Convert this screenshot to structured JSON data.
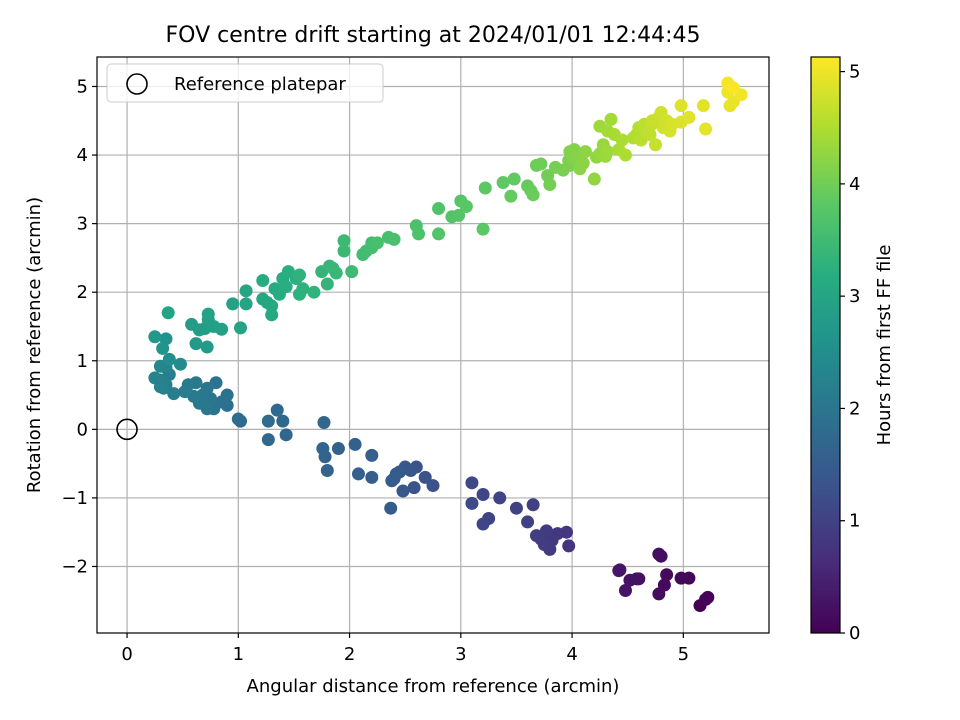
{
  "chart_data": {
    "type": "scatter",
    "title": "FOV centre drift starting at 2024/01/01 12:44:45",
    "xlabel": "Angular distance from reference (arcmin)",
    "ylabel": "Rotation from reference (arcmin)",
    "xlim": [
      -0.27,
      5.77
    ],
    "ylim": [
      -2.97,
      5.43
    ],
    "xticks": [
      0,
      1,
      2,
      3,
      4,
      5
    ],
    "yticks": [
      -2,
      -1,
      0,
      1,
      2,
      3,
      4,
      5
    ],
    "xtick_labels": [
      "0",
      "1",
      "2",
      "3",
      "4",
      "5"
    ],
    "ytick_labels": [
      "−2",
      "−1",
      "0",
      "1",
      "2",
      "3",
      "4",
      "5"
    ],
    "grid": true,
    "legend": {
      "placement": "upper-left",
      "entries": [
        "Reference platepar"
      ]
    },
    "colormap": "viridis",
    "colorbar": {
      "label": "Hours from first FF file",
      "range": [
        0,
        5.13
      ],
      "ticks": [
        0,
        1,
        2,
        3,
        4,
        5
      ],
      "tick_labels": [
        "0",
        "1",
        "2",
        "3",
        "4",
        "5"
      ]
    },
    "reference_point": {
      "name": "Reference platepar",
      "x": 0,
      "y": 0
    },
    "series": [
      {
        "columns": [
          "x",
          "y",
          "hours"
        ],
        "points": [
          [
            5.15,
            -2.57,
            0.02
          ],
          [
            5.22,
            -2.45,
            0.04
          ],
          [
            5.2,
            -2.48,
            0.06
          ],
          [
            5.05,
            -2.17,
            0.08
          ],
          [
            4.98,
            -2.17,
            0.1
          ],
          [
            4.83,
            -2.27,
            0.12
          ],
          [
            4.85,
            -2.12,
            0.14
          ],
          [
            4.78,
            -2.4,
            0.16
          ],
          [
            4.8,
            -1.85,
            0.18
          ],
          [
            4.78,
            -1.82,
            0.2
          ],
          [
            4.58,
            -2.18,
            0.22
          ],
          [
            4.6,
            -2.18,
            0.24
          ],
          [
            4.52,
            -2.2,
            0.26
          ],
          [
            4.48,
            -2.35,
            0.28
          ],
          [
            4.43,
            -2.05,
            0.3
          ],
          [
            4.42,
            -2.06,
            0.32
          ],
          [
            3.97,
            -1.7,
            0.8
          ],
          [
            3.95,
            -1.5,
            0.82
          ],
          [
            3.87,
            -1.52,
            0.84
          ],
          [
            3.82,
            -1.62,
            0.86
          ],
          [
            3.8,
            -1.75,
            0.88
          ],
          [
            3.77,
            -1.48,
            0.9
          ],
          [
            3.75,
            -1.68,
            0.92
          ],
          [
            3.72,
            -1.6,
            0.94
          ],
          [
            3.68,
            -1.55,
            0.96
          ],
          [
            3.65,
            -1.1,
            0.98
          ],
          [
            3.6,
            -1.35,
            1.0
          ],
          [
            3.5,
            -1.15,
            1.02
          ],
          [
            3.35,
            -1.0,
            1.04
          ],
          [
            3.25,
            -1.3,
            1.06
          ],
          [
            3.2,
            -1.38,
            1.08
          ],
          [
            3.2,
            -0.95,
            1.1
          ],
          [
            3.1,
            -0.78,
            1.12
          ],
          [
            3.1,
            -1.08,
            1.14
          ],
          [
            2.75,
            -0.82,
            1.3
          ],
          [
            2.68,
            -0.7,
            1.32
          ],
          [
            2.6,
            -0.55,
            1.34
          ],
          [
            2.58,
            -0.85,
            1.36
          ],
          [
            2.55,
            -0.6,
            1.38
          ],
          [
            2.5,
            -0.55,
            1.4
          ],
          [
            2.48,
            -0.9,
            1.42
          ],
          [
            2.45,
            -0.62,
            1.44
          ],
          [
            2.42,
            -0.65,
            1.46
          ],
          [
            2.4,
            -0.72,
            1.48
          ],
          [
            2.38,
            -0.75,
            1.5
          ],
          [
            2.37,
            -1.15,
            1.52
          ],
          [
            2.2,
            -0.7,
            1.54
          ],
          [
            2.2,
            -0.38,
            1.56
          ],
          [
            2.08,
            -0.65,
            1.58
          ],
          [
            2.05,
            -0.22,
            1.6
          ],
          [
            1.9,
            -0.28,
            1.62
          ],
          [
            1.78,
            -0.4,
            1.64
          ],
          [
            1.8,
            -0.6,
            1.66
          ],
          [
            1.76,
            -0.28,
            1.68
          ],
          [
            1.77,
            0.1,
            1.7
          ],
          [
            1.43,
            -0.08,
            1.72
          ],
          [
            1.4,
            0.12,
            1.74
          ],
          [
            1.35,
            0.28,
            1.76
          ],
          [
            1.27,
            -0.15,
            1.78
          ],
          [
            1.27,
            0.12,
            1.8
          ],
          [
            1.02,
            0.12,
            1.82
          ],
          [
            1.0,
            0.15,
            1.84
          ],
          [
            0.9,
            0.35,
            1.9
          ],
          [
            0.9,
            0.5,
            1.92
          ],
          [
            0.85,
            0.4,
            1.94
          ],
          [
            0.8,
            0.68,
            1.96
          ],
          [
            0.78,
            0.3,
            1.98
          ],
          [
            0.75,
            0.45,
            2.0
          ],
          [
            0.72,
            0.6,
            2.02
          ],
          [
            0.72,
            0.3,
            2.04
          ],
          [
            0.68,
            0.5,
            2.06
          ],
          [
            0.65,
            0.38,
            2.08
          ],
          [
            0.62,
            0.68,
            2.1
          ],
          [
            0.6,
            0.48,
            2.12
          ],
          [
            0.55,
            0.65,
            2.14
          ],
          [
            0.52,
            0.55,
            2.16
          ],
          [
            0.42,
            0.52,
            2.18
          ],
          [
            0.38,
            0.8,
            2.2
          ],
          [
            0.35,
            0.65,
            2.22
          ],
          [
            0.33,
            0.6,
            2.24
          ],
          [
            0.3,
            0.72,
            2.26
          ],
          [
            0.3,
            0.62,
            2.28
          ],
          [
            0.25,
            0.75,
            2.3
          ],
          [
            0.35,
            0.9,
            2.34
          ],
          [
            0.3,
            0.92,
            2.38
          ],
          [
            0.48,
            0.95,
            2.48
          ],
          [
            0.38,
            1.02,
            2.5
          ],
          [
            0.35,
            1.32,
            2.6
          ],
          [
            0.32,
            1.18,
            2.65
          ],
          [
            0.25,
            1.35,
            2.72
          ],
          [
            0.62,
            1.25,
            2.78
          ],
          [
            0.72,
            1.2,
            2.8
          ],
          [
            0.65,
            1.45,
            2.82
          ],
          [
            0.58,
            1.53,
            2.84
          ],
          [
            0.7,
            1.47,
            2.86
          ],
          [
            0.73,
            1.6,
            2.88
          ],
          [
            0.78,
            1.5,
            2.9
          ],
          [
            0.85,
            1.46,
            2.92
          ],
          [
            0.73,
            1.68,
            2.94
          ],
          [
            0.95,
            1.83,
            2.96
          ],
          [
            1.02,
            1.48,
            2.98
          ],
          [
            0.37,
            1.7,
            3.0
          ],
          [
            1.07,
            1.83,
            3.02
          ],
          [
            1.07,
            2.02,
            3.04
          ],
          [
            1.22,
            1.9,
            3.06
          ],
          [
            1.26,
            1.85,
            3.08
          ],
          [
            1.3,
            1.8,
            3.1
          ],
          [
            1.3,
            1.67,
            3.12
          ],
          [
            1.33,
            2.05,
            3.14
          ],
          [
            1.37,
            1.97,
            3.16
          ],
          [
            1.22,
            2.17,
            3.18
          ],
          [
            1.4,
            2.2,
            3.2
          ],
          [
            1.43,
            2.08,
            3.22
          ],
          [
            1.45,
            2.3,
            3.24
          ],
          [
            1.52,
            2.2,
            3.26
          ],
          [
            1.55,
            1.97,
            3.28
          ],
          [
            1.58,
            2.05,
            3.3
          ],
          [
            1.55,
            2.25,
            3.32
          ],
          [
            1.68,
            2.0,
            3.34
          ],
          [
            1.75,
            2.3,
            3.36
          ],
          [
            1.8,
            2.12,
            3.38
          ],
          [
            1.82,
            2.38,
            3.4
          ],
          [
            1.85,
            2.35,
            3.42
          ],
          [
            1.88,
            2.28,
            3.44
          ],
          [
            1.95,
            2.6,
            3.46
          ],
          [
            1.95,
            2.75,
            3.48
          ],
          [
            2.02,
            2.3,
            3.5
          ],
          [
            2.12,
            2.55,
            3.52
          ],
          [
            2.15,
            2.6,
            3.54
          ],
          [
            2.2,
            2.72,
            3.56
          ],
          [
            2.2,
            2.65,
            3.58
          ],
          [
            2.25,
            2.72,
            3.6
          ],
          [
            2.35,
            2.8,
            3.62
          ],
          [
            2.4,
            2.77,
            3.64
          ],
          [
            2.6,
            2.97,
            3.66
          ],
          [
            2.62,
            2.85,
            3.68
          ],
          [
            2.8,
            3.22,
            3.7
          ],
          [
            2.8,
            2.85,
            3.72
          ],
          [
            2.92,
            3.1,
            3.74
          ],
          [
            2.98,
            3.12,
            3.76
          ],
          [
            3.0,
            3.33,
            3.78
          ],
          [
            3.05,
            3.25,
            3.8
          ],
          [
            3.2,
            2.92,
            3.82
          ],
          [
            3.22,
            3.52,
            3.84
          ],
          [
            3.38,
            3.6,
            3.86
          ],
          [
            3.48,
            3.65,
            3.88
          ],
          [
            3.45,
            3.4,
            3.9
          ],
          [
            3.6,
            3.55,
            3.92
          ],
          [
            3.63,
            3.48,
            3.94
          ],
          [
            3.65,
            3.42,
            3.96
          ],
          [
            3.68,
            3.85,
            3.98
          ],
          [
            3.72,
            3.87,
            4.0
          ],
          [
            3.78,
            3.7,
            4.02
          ],
          [
            3.8,
            3.57,
            4.04
          ],
          [
            3.85,
            3.82,
            4.06
          ],
          [
            3.92,
            3.78,
            4.08
          ],
          [
            3.98,
            3.85,
            4.1
          ],
          [
            3.97,
            3.92,
            4.12
          ],
          [
            4.0,
            3.95,
            4.14
          ],
          [
            4.02,
            4.08,
            4.16
          ],
          [
            3.98,
            4.05,
            4.18
          ],
          [
            4.05,
            3.95,
            4.2
          ],
          [
            4.07,
            3.8,
            4.22
          ],
          [
            4.1,
            3.88,
            4.24
          ],
          [
            4.12,
            4.05,
            4.26
          ],
          [
            4.2,
            3.65,
            4.28
          ],
          [
            4.22,
            3.97,
            4.3
          ],
          [
            4.25,
            4.02,
            4.32
          ],
          [
            4.28,
            4.15,
            4.34
          ],
          [
            4.3,
            3.98,
            4.36
          ],
          [
            4.32,
            4.05,
            4.38
          ],
          [
            4.25,
            4.42,
            4.4
          ],
          [
            4.32,
            4.35,
            4.42
          ],
          [
            4.35,
            4.52,
            4.44
          ],
          [
            4.38,
            4.3,
            4.46
          ],
          [
            4.42,
            4.08,
            4.48
          ],
          [
            4.45,
            4.22,
            4.5
          ],
          [
            4.48,
            4.0,
            4.52
          ],
          [
            4.55,
            4.25,
            4.54
          ],
          [
            4.58,
            4.3,
            4.56
          ],
          [
            4.6,
            4.4,
            4.58
          ],
          [
            4.62,
            4.22,
            4.6
          ],
          [
            4.65,
            4.45,
            4.62
          ],
          [
            4.68,
            4.35,
            4.64
          ],
          [
            4.7,
            4.3,
            4.66
          ],
          [
            4.72,
            4.45,
            4.68
          ],
          [
            4.75,
            4.15,
            4.7
          ],
          [
            4.72,
            4.5,
            4.72
          ],
          [
            4.78,
            4.55,
            4.74
          ],
          [
            4.8,
            4.62,
            4.76
          ],
          [
            4.82,
            4.4,
            4.78
          ],
          [
            4.85,
            4.5,
            4.8
          ],
          [
            4.88,
            4.35,
            4.82
          ],
          [
            4.9,
            4.45,
            4.84
          ],
          [
            4.98,
            4.48,
            4.86
          ],
          [
            4.98,
            4.72,
            4.88
          ],
          [
            5.05,
            4.55,
            4.9
          ],
          [
            5.18,
            4.72,
            4.92
          ],
          [
            5.2,
            4.38,
            4.94
          ],
          [
            5.42,
            4.72,
            4.96
          ],
          [
            5.45,
            4.78,
            4.98
          ],
          [
            5.4,
            4.92,
            5.0
          ],
          [
            5.52,
            4.88,
            5.03
          ],
          [
            5.4,
            5.05,
            5.06
          ],
          [
            5.45,
            4.98,
            5.1
          ]
        ]
      }
    ]
  }
}
